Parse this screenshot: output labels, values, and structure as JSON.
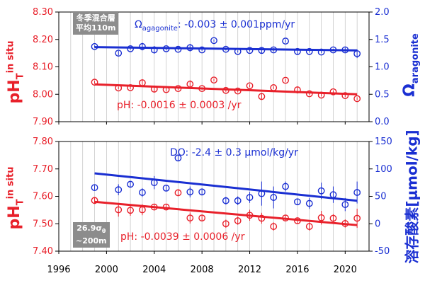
{
  "colors": {
    "ph": "#e8202a",
    "other": "#1a2fd2",
    "grid": "#c8c8c8",
    "box": "#8c8c8c"
  },
  "x_ticks": [
    "1996",
    "2000",
    "2004",
    "2008",
    "2012",
    "2016",
    "2020"
  ],
  "top_panel": {
    "box_line1": "冬季混合層",
    "box_line2": "平均110m",
    "left_label": {
      "main": "pH",
      "sub": "T",
      "sup": "in situ"
    },
    "right_label": {
      "main": "Ω",
      "sub": "aragonite"
    },
    "annotation_omega": {
      "symbol": "Ω",
      "sub": "agagonite",
      "text": ": -0.003 ± 0.001ppm/yr"
    },
    "annotation_ph": "pH: -0.0016 ± 0.0003 /yr"
  },
  "bottom_panel": {
    "box_line1": "26.9σ",
    "box_line1_sub": "θ",
    "box_line2": "~200m",
    "left_label": {
      "main": "pH",
      "sub": "T",
      "sup": "in situ"
    },
    "right_label": "溶存酸素[μmol/kg]",
    "annotation_do": "DO: -2.4 ± 0.3 μmol/kg/yr",
    "annotation_ph": "pH: -0.0039 ± 0.0006 /yr"
  },
  "chart_data": [
    {
      "type": "scatter",
      "panel": "top",
      "xlim": [
        1996,
        2022
      ],
      "x_ticks": [
        1996,
        2000,
        2004,
        2008,
        2012,
        2016,
        2020
      ],
      "y_left": {
        "label": "pHT in situ",
        "lim": [
          7.9,
          8.3
        ],
        "ticks": [
          "7.90",
          "8.00",
          "8.10",
          "8.20",
          "8.30"
        ]
      },
      "y_right": {
        "label": "Ω aragonite",
        "lim": [
          0.0,
          2.0
        ],
        "ticks": [
          "0.0",
          "0.5",
          "1.0",
          "1.5",
          "2.0"
        ]
      },
      "series": [
        {
          "axis": "left",
          "x": [
            1999,
            2001,
            2002,
            2003,
            2004,
            2005,
            2006,
            2007,
            2008,
            2009,
            2010,
            2011,
            2012,
            2013,
            2014,
            2015,
            2016,
            2017,
            2018,
            2019,
            2020,
            2021
          ],
          "y": [
            8.044,
            8.023,
            8.024,
            8.042,
            8.019,
            8.017,
            8.021,
            8.037,
            8.021,
            8.052,
            8.014,
            8.012,
            8.031,
            7.992,
            8.024,
            8.051,
            8.016,
            8.002,
            7.997,
            8.009,
            7.995,
            7.984
          ],
          "err": [
            0.005,
            0.005,
            0.005,
            0.013,
            0.013,
            0.007,
            0.005,
            0.014,
            0.004,
            0.005,
            0.005,
            0.005,
            0.005,
            0.013,
            0.005,
            0.006,
            0.013,
            0.005,
            0.005,
            0.005,
            0.005,
            0.005
          ],
          "trend": {
            "x": [
              1999,
              2021
            ],
            "y": [
              8.036,
              8.0
            ]
          }
        },
        {
          "axis": "right",
          "x": [
            1999,
            2001,
            2002,
            2003,
            2004,
            2005,
            2006,
            2007,
            2008,
            2009,
            2010,
            2011,
            2012,
            2013,
            2014,
            2015,
            2016,
            2017,
            2018,
            2019,
            2020,
            2021
          ],
          "y": [
            1.37,
            1.25,
            1.33,
            1.37,
            1.31,
            1.33,
            1.32,
            1.35,
            1.31,
            1.48,
            1.32,
            1.28,
            1.3,
            1.3,
            1.31,
            1.47,
            1.28,
            1.28,
            1.27,
            1.31,
            1.31,
            1.24
          ],
          "err": [
            0.02,
            0.04,
            0.02,
            0.07,
            0.07,
            0.03,
            0.02,
            0.07,
            0.02,
            0.02,
            0.02,
            0.02,
            0.02,
            0.06,
            0.03,
            0.03,
            0.06,
            0.02,
            0.02,
            0.02,
            0.04,
            0.08
          ],
          "trend": {
            "x": [
              1999,
              2021
            ],
            "y": [
              1.36,
              1.3
            ]
          }
        }
      ]
    },
    {
      "type": "scatter",
      "panel": "bottom",
      "xlim": [
        1996,
        2022
      ],
      "x_ticks": [
        1996,
        2000,
        2004,
        2008,
        2012,
        2016,
        2020
      ],
      "y_left": {
        "label": "pHT in situ",
        "lim": [
          7.4,
          7.8
        ],
        "ticks": [
          "7.40",
          "7.50",
          "7.60",
          "7.70",
          "7.80"
        ]
      },
      "y_right": {
        "label": "溶存酸素[μmol/kg]",
        "lim": [
          -50,
          150
        ],
        "ticks": [
          "-50",
          "0",
          "50",
          "100",
          "150"
        ]
      },
      "series": [
        {
          "axis": "left",
          "x": [
            1999,
            2001,
            2002,
            2003,
            2004,
            2005,
            2006,
            2007,
            2008,
            2010,
            2011,
            2012,
            2013,
            2014,
            2015,
            2016,
            2017,
            2018,
            2019,
            2020,
            2021
          ],
          "y": [
            7.585,
            7.551,
            7.549,
            7.551,
            7.561,
            7.561,
            7.613,
            7.521,
            7.521,
            7.5,
            7.511,
            7.531,
            7.52,
            7.49,
            7.521,
            7.511,
            7.49,
            7.522,
            7.52,
            7.501,
            7.52
          ],
          "err": [
            0.01,
            0.025,
            0.02,
            0.02,
            0.012,
            0.012,
            0.01,
            0.02,
            0.012,
            0.015,
            0.015,
            0.02,
            0.02,
            0.015,
            0.012,
            0.012,
            0.015,
            0.025,
            0.015,
            0.015,
            0.035
          ],
          "trend": {
            "x": [
              1999,
              2021
            ],
            "y": [
              7.58,
              7.495
            ]
          }
        },
        {
          "axis": "right",
          "x": [
            1999,
            2001,
            2002,
            2003,
            2004,
            2005,
            2006,
            2007,
            2008,
            2010,
            2011,
            2012,
            2013,
            2014,
            2015,
            2016,
            2017,
            2018,
            2019,
            2020,
            2021
          ],
          "y": [
            66,
            62,
            72,
            57,
            75,
            65,
            120,
            58,
            58,
            42,
            42,
            48,
            55,
            48,
            68,
            40,
            37,
            60,
            53,
            35,
            57
          ],
          "err": [
            4,
            10,
            5,
            8,
            12,
            6,
            5,
            10,
            5,
            7,
            8,
            10,
            22,
            20,
            9,
            6,
            10,
            15,
            15,
            12,
            20
          ],
          "trend": {
            "x": [
              1999,
              2021
            ],
            "y": [
              92,
              42
            ]
          }
        }
      ]
    }
  ]
}
